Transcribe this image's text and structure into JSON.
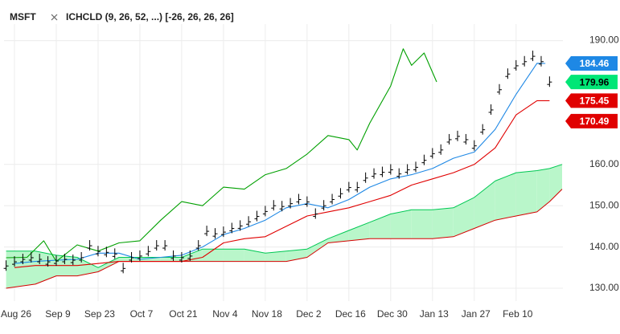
{
  "chart_data": {
    "type": "ichimoku",
    "symbol": "MSFT",
    "indicator": "ICHCLD (9, 26, 52, ...) [-26, 26, 26, 26]",
    "xlim": [
      -2.5,
      131.2
    ],
    "ylim": [
      123,
      194
    ],
    "grid": true,
    "xticks": [
      {
        "value": 0,
        "label": "Aug 26"
      },
      {
        "value": 10,
        "label": "Sep 9"
      },
      {
        "value": 20,
        "label": "Sep 23"
      },
      {
        "value": 30,
        "label": "Oct 7"
      },
      {
        "value": 40,
        "label": "Oct 21"
      },
      {
        "value": 50,
        "label": "Nov 4"
      },
      {
        "value": 60,
        "label": "Nov 18"
      },
      {
        "value": 70,
        "label": "Dec 2"
      },
      {
        "value": 80,
        "label": "Dec 16"
      },
      {
        "value": 90,
        "label": "Dec 30"
      },
      {
        "value": 100,
        "label": "Jan 13"
      },
      {
        "value": 110,
        "label": "Jan 27"
      },
      {
        "value": 120,
        "label": "Feb 10"
      }
    ],
    "yticks": [
      {
        "value": 130,
        "label": "130.00"
      },
      {
        "value": 140,
        "label": "140.00"
      },
      {
        "value": 150,
        "label": "150.00"
      },
      {
        "value": 160,
        "label": "160.00"
      },
      {
        "value": 190,
        "label": "190.00"
      }
    ],
    "price": {
      "color": "#000000",
      "x": [
        -2,
        0,
        2,
        4,
        6,
        8,
        10,
        12,
        14,
        16,
        18,
        20,
        22,
        24,
        26,
        28,
        30,
        32,
        34,
        36,
        38,
        40,
        42,
        44,
        46,
        48,
        50,
        52,
        54,
        56,
        58,
        60,
        62,
        64,
        66,
        68,
        70,
        72,
        74,
        76,
        78,
        80,
        82,
        84,
        86,
        88,
        90,
        92,
        94,
        96,
        98,
        100,
        102,
        104,
        106,
        108,
        110,
        112,
        114,
        116,
        118,
        120,
        122,
        124,
        126,
        128
      ],
      "values": [
        135.4,
        136.4,
        137,
        137.4,
        137,
        136.4,
        136.6,
        137,
        136.8,
        137.4,
        140.3,
        138.9,
        138.7,
        138.3,
        134.8,
        137.4,
        137.8,
        138.9,
        140.3,
        140.3,
        137.8,
        137.4,
        137.8,
        140.3,
        143.8,
        143.2,
        143.6,
        144.5,
        145.1,
        146.1,
        147.4,
        148.6,
        150,
        149.8,
        150.5,
        151.5,
        150.9,
        148,
        150,
        151.5,
        152.9,
        154.4,
        154.4,
        156.7,
        157.7,
        158.1,
        158.7,
        157.7,
        158.7,
        159.3,
        161,
        162.6,
        163.5,
        166,
        166.8,
        166,
        164.5,
        168.4,
        173.2,
        178.1,
        181.9,
        183.9,
        184.9,
        186.2,
        184.9,
        179.96
      ]
    },
    "cloud": {
      "x": [
        -2,
        5,
        10,
        15,
        20,
        25,
        30,
        35,
        40,
        45,
        50,
        55,
        60,
        65,
        70,
        75,
        80,
        85,
        90,
        95,
        100,
        105,
        110,
        115,
        120,
        125,
        128,
        131
      ],
      "span_a": {
        "color": "#00c853",
        "values": [
          139,
          139,
          138,
          137.5,
          135,
          137.5,
          137.5,
          137.5,
          137.5,
          139.5,
          139.5,
          139.5,
          138.5,
          139,
          139.5,
          142,
          144,
          146,
          148,
          149,
          149,
          149.5,
          152,
          156,
          158,
          158.5,
          159,
          160
        ]
      },
      "span_b": {
        "color": "#d50000",
        "values": [
          130,
          131,
          133,
          133,
          134,
          136.5,
          136.5,
          136.5,
          136.5,
          136.5,
          136.5,
          136.5,
          136.5,
          136.5,
          137.5,
          141,
          141.5,
          142,
          142,
          142,
          142,
          142.5,
          144.5,
          146.5,
          147.5,
          148.5,
          151,
          154
        ]
      },
      "up_fill": "#b9f6ca",
      "down_fill": "#ffcdd2"
    },
    "series": [
      {
        "color": "#1e88e5",
        "x": [
          0,
          5,
          10,
          15,
          20,
          25,
          30,
          35,
          40,
          45,
          50,
          55,
          60,
          65,
          70,
          75,
          80,
          85,
          90,
          95,
          100,
          105,
          110,
          115,
          120,
          125,
          127
        ],
        "values": [
          136,
          136.5,
          136.8,
          137,
          138.5,
          138.5,
          137,
          137.5,
          138,
          140,
          143,
          144.5,
          146.5,
          149.5,
          150.5,
          149.5,
          151.5,
          154.5,
          156.5,
          157.5,
          159,
          161.5,
          163,
          168.5,
          177,
          184.5,
          184.46
        ]
      },
      {
        "color": "#e00000",
        "x": [
          0,
          5,
          10,
          15,
          20,
          25,
          30,
          35,
          40,
          45,
          50,
          55,
          60,
          65,
          70,
          75,
          80,
          85,
          90,
          95,
          100,
          105,
          110,
          115,
          120,
          125,
          128
        ],
        "values": [
          135,
          135.5,
          135.5,
          135.5,
          136,
          136.5,
          136.5,
          136.5,
          136.5,
          137.5,
          141,
          142,
          142.5,
          145,
          147.5,
          148.5,
          149.5,
          151,
          152.5,
          155,
          156.5,
          158,
          160,
          164,
          172,
          175.45,
          175.45
        ]
      },
      {
        "color": "#00a000",
        "x": [
          -2,
          3,
          7,
          10,
          15,
          20,
          25,
          30,
          35,
          40,
          45,
          50,
          55,
          60,
          65,
          70,
          75,
          80,
          82,
          85,
          90,
          93,
          95,
          98,
          101
        ],
        "values": [
          137.4,
          137.5,
          141.5,
          136.5,
          140.5,
          139,
          141,
          141.5,
          146.5,
          151,
          150,
          154.5,
          154,
          157.5,
          159,
          162.5,
          167,
          166,
          163.5,
          170,
          179,
          188,
          184,
          187,
          180
        ]
      }
    ],
    "price_labels": [
      {
        "value": 184.46,
        "color": "#1e88e5",
        "text_color": "#ffffff"
      },
      {
        "value": 179.96,
        "color": "#00e676",
        "text_color": "#000000"
      },
      {
        "value": 175.45,
        "color": "#e00000",
        "text_color": "#ffffff"
      },
      {
        "value": 170.49,
        "color": "#e00000",
        "text_color": "#ffffff"
      }
    ]
  }
}
